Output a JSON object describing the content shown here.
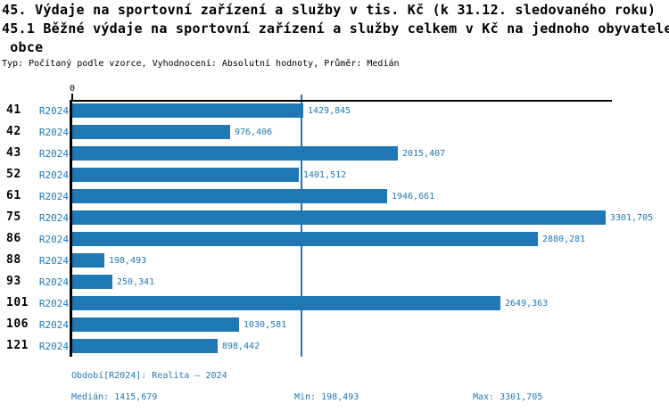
{
  "header": {
    "title_line1": "45. Výdaje na sportovní zařízení a služby v tis. Kč (k 31.12. sledovaného roku)",
    "title_line2": "45.1 Běžné výdaje na sportovní zařízení a služby celkem v Kč na jednoho obyvatele",
    "title_line3": " obce",
    "subtitle": "Typ: Počítaný podle vzorce, Vyhodnocení: Absolutní hodnoty, Průměr: Medián"
  },
  "chart_data": {
    "type": "bar",
    "orientation": "horizontal",
    "title": "45.1 Běžné výdaje na sportovní zařízení a služby celkem v Kč na jednoho obyvatele obce",
    "categories": [
      "41",
      "42",
      "43",
      "52",
      "61",
      "75",
      "86",
      "88",
      "93",
      "101",
      "106",
      "121"
    ],
    "series_label": "R2024",
    "values": [
      1429.845,
      976.406,
      2015.407,
      1401.512,
      1946.661,
      3301.705,
      2880.281,
      198.493,
      250.341,
      2649.363,
      1030.581,
      898.442
    ],
    "value_labels": [
      "1429,845",
      "976,406",
      "2015,407",
      "1401,512",
      "1946,661",
      "3301,705",
      "2880,281",
      "198,493",
      "250,341",
      "2649,363",
      "1030,581",
      "898,442"
    ],
    "xlim": [
      0,
      3335
    ],
    "zero_tick_label": "0",
    "median": 1415.679,
    "min": 198.493,
    "max": 3301.705,
    "grid": "off",
    "legend": "none",
    "colors": {
      "bar": "#1f77b4",
      "median_line": "#1f77b4",
      "axis": "#000000",
      "value_text": "#1f77b4",
      "category_text": "#000000"
    }
  },
  "footer": {
    "period_line": "Období[R2024]: Realita – 2024",
    "median_label": "Medián: 1415,679",
    "min_label": "Min: 198,493",
    "max_label": "Max: 3301,705"
  }
}
